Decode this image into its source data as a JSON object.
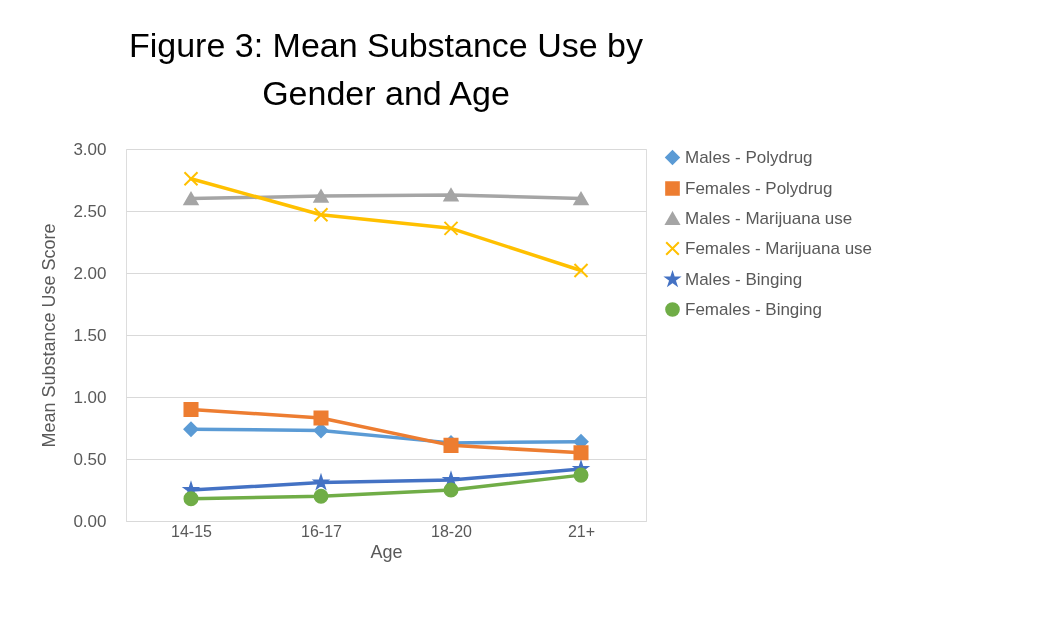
{
  "chart_data": {
    "type": "line",
    "title": "Figure 3: Mean Substance Use by Gender and Age",
    "xlabel": "Age",
    "ylabel": "Mean Substance Use Score",
    "categories": [
      "14-15",
      "16-17",
      "18-20",
      "21+"
    ],
    "series": [
      {
        "name": "Males - Polydrug",
        "color": "#5b9bd5",
        "marker": "diamond",
        "values": [
          0.74,
          0.73,
          0.63,
          0.64
        ]
      },
      {
        "name": "Females - Polydrug",
        "color": "#ed7d31",
        "marker": "square",
        "values": [
          0.9,
          0.83,
          0.61,
          0.55
        ]
      },
      {
        "name": "Males - Marijuana use",
        "color": "#a5a5a5",
        "marker": "triangle",
        "values": [
          2.6,
          2.62,
          2.63,
          2.6
        ]
      },
      {
        "name": "Females - Marijuana use",
        "color": "#ffc000",
        "marker": "cross",
        "values": [
          2.76,
          2.47,
          2.36,
          2.02
        ]
      },
      {
        "name": "Males - Binging",
        "color": "#4472c4",
        "marker": "star",
        "values": [
          0.25,
          0.31,
          0.33,
          0.42
        ]
      },
      {
        "name": "Females - Binging",
        "color": "#70ad47",
        "marker": "circle",
        "values": [
          0.18,
          0.2,
          0.25,
          0.37
        ]
      }
    ],
    "ylim": [
      0,
      3
    ],
    "yticks": [
      {
        "value": 0,
        "label": "0.00"
      },
      {
        "value": 0.5,
        "label": "0.50"
      },
      {
        "value": 1,
        "label": "1.00"
      },
      {
        "value": 1.5,
        "label": "1.50"
      },
      {
        "value": 2,
        "label": "2.00"
      },
      {
        "value": 2.5,
        "label": "2.50"
      },
      {
        "value": 3,
        "label": "3.00"
      }
    ],
    "grid": "y",
    "legend": "right",
    "line_style": "solid"
  }
}
